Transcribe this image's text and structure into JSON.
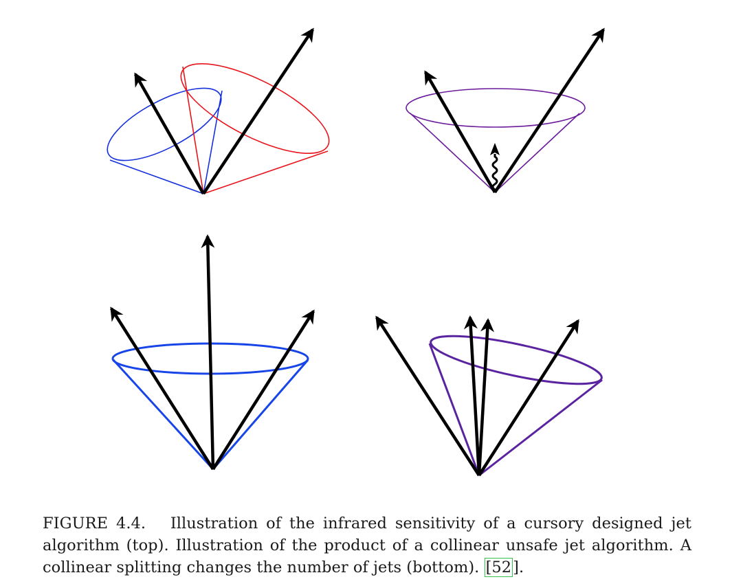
{
  "figure": {
    "colors": {
      "arrow": "#000000",
      "cone_blue": "#1530dd",
      "cone_red": "#e8141c",
      "cone_purple_top": "#6a1a9a",
      "cone_blue_bottom": "#1745e8",
      "cone_purple_bottom": "#5a23a0"
    },
    "panels": [
      {
        "position": "top-left",
        "description_name": "infrared-unsafe-two-cones"
      },
      {
        "position": "top-right",
        "description_name": "infrared-soft-gluon-cone"
      },
      {
        "position": "bottom-left",
        "description_name": "collinear-three-jets"
      },
      {
        "position": "bottom-right",
        "description_name": "collinear-split-jets"
      }
    ]
  },
  "caption": {
    "label": "FIGURE 4.4.",
    "line1_rest": "Illustration of the infrared sensitivity of a cursory designed jet",
    "line2": "algorithm (top). Illustration of the product of a collinear unsafe jet algorithm. A",
    "line3_pre": "collinear splitting changes the number of jets (bottom).",
    "cite_open": "[",
    "citation": "52",
    "cite_close": "]",
    "end": "."
  }
}
